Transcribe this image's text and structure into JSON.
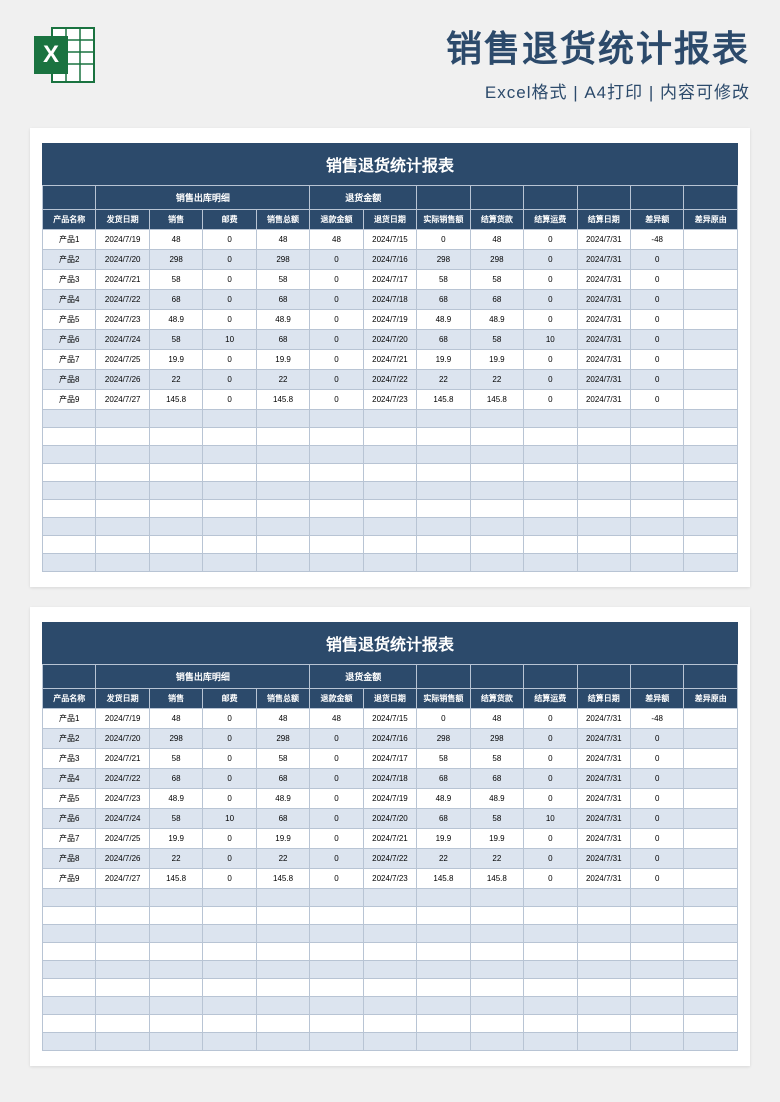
{
  "header": {
    "main_title": "销售退货统计报表",
    "sub_title": "Excel格式 | A4打印 | 内容可修改"
  },
  "report": {
    "title": "销售退货统计报表",
    "group_headers": {
      "outbound": "销售出库明细",
      "refund": "退货金额"
    },
    "columns": [
      "产品名称",
      "发货日期",
      "销售",
      "邮费",
      "销售总额",
      "退款金额",
      "退货日期",
      "实际销售额",
      "结算货款",
      "结算运费",
      "结算日期",
      "差异额",
      "差异原由"
    ],
    "rows": [
      [
        "产品1",
        "2024/7/19",
        "48",
        "0",
        "48",
        "48",
        "2024/7/15",
        "0",
        "48",
        "0",
        "2024/7/31",
        "-48",
        ""
      ],
      [
        "产品2",
        "2024/7/20",
        "298",
        "0",
        "298",
        "0",
        "2024/7/16",
        "298",
        "298",
        "0",
        "2024/7/31",
        "0",
        ""
      ],
      [
        "产品3",
        "2024/7/21",
        "58",
        "0",
        "58",
        "0",
        "2024/7/17",
        "58",
        "58",
        "0",
        "2024/7/31",
        "0",
        ""
      ],
      [
        "产品4",
        "2024/7/22",
        "68",
        "0",
        "68",
        "0",
        "2024/7/18",
        "68",
        "68",
        "0",
        "2024/7/31",
        "0",
        ""
      ],
      [
        "产品5",
        "2024/7/23",
        "48.9",
        "0",
        "48.9",
        "0",
        "2024/7/19",
        "48.9",
        "48.9",
        "0",
        "2024/7/31",
        "0",
        ""
      ],
      [
        "产品6",
        "2024/7/24",
        "58",
        "10",
        "68",
        "0",
        "2024/7/20",
        "68",
        "58",
        "10",
        "2024/7/31",
        "0",
        ""
      ],
      [
        "产品7",
        "2024/7/25",
        "19.9",
        "0",
        "19.9",
        "0",
        "2024/7/21",
        "19.9",
        "19.9",
        "0",
        "2024/7/31",
        "0",
        ""
      ],
      [
        "产品8",
        "2024/7/26",
        "22",
        "0",
        "22",
        "0",
        "2024/7/22",
        "22",
        "22",
        "0",
        "2024/7/31",
        "0",
        ""
      ],
      [
        "产品9",
        "2024/7/27",
        "145.8",
        "0",
        "145.8",
        "0",
        "2024/7/23",
        "145.8",
        "145.8",
        "0",
        "2024/7/31",
        "0",
        ""
      ]
    ],
    "blank_rows": 9,
    "colors": {
      "header_bg": "#2c4a6b",
      "row_odd": "#ffffff",
      "row_even": "#dce4ef",
      "border": "#b8c4d4"
    }
  }
}
